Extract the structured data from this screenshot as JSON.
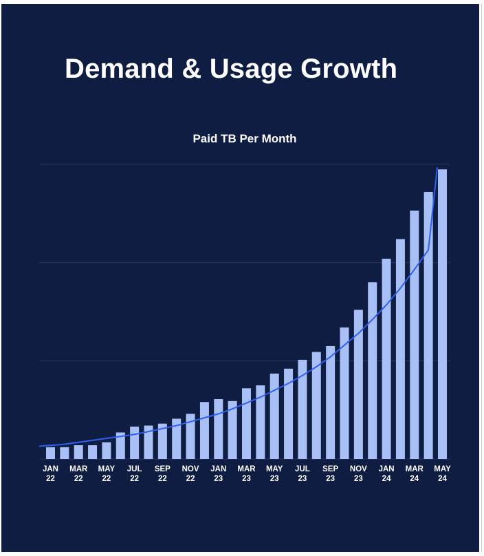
{
  "page": {
    "title": "Demand & Usage Growth"
  },
  "colors": {
    "background": "#0f1d43",
    "bar": "#a9c0f6",
    "trend": "#2f5ff0",
    "grid": "#27365e"
  },
  "chart_data": {
    "type": "bar",
    "title": "Paid TB Per Month",
    "xlabel": "",
    "ylabel": "",
    "ylim": [
      0,
      3
    ],
    "grid": true,
    "trendline": "exponential",
    "categories": [
      "Jan 22",
      "Feb 22",
      "Mar 22",
      "Apr 22",
      "May 22",
      "Jun 22",
      "Jul 22",
      "Aug 22",
      "Sep 22",
      "Oct 22",
      "Nov 22",
      "Dec 22",
      "Jan 23",
      "Feb 23",
      "Mar 23",
      "Apr 23",
      "May 23",
      "Jun 23",
      "Jul 23",
      "Aug 23",
      "Sep 23",
      "Oct 23",
      "Nov 23",
      "Dec 23",
      "Jan 24",
      "Feb 24",
      "Mar 24",
      "Apr 24",
      "May 24"
    ],
    "tick_labels": [
      {
        "month": "JAN",
        "year": "22"
      },
      {
        "month": "MAR",
        "year": "22"
      },
      {
        "month": "MAY",
        "year": "22"
      },
      {
        "month": "JUL",
        "year": "22"
      },
      {
        "month": "SEP",
        "year": "22"
      },
      {
        "month": "NOV",
        "year": "22"
      },
      {
        "month": "JAN",
        "year": "23"
      },
      {
        "month": "MAR",
        "year": "23"
      },
      {
        "month": "MAY",
        "year": "23"
      },
      {
        "month": "JUL",
        "year": "23"
      },
      {
        "month": "SEP",
        "year": "23"
      },
      {
        "month": "NOV",
        "year": "23"
      },
      {
        "month": "JAN",
        "year": "24"
      },
      {
        "month": "MAR",
        "year": "24"
      },
      {
        "month": "MAY",
        "year": "24"
      }
    ],
    "values": [
      0.12,
      0.12,
      0.14,
      0.14,
      0.17,
      0.27,
      0.33,
      0.34,
      0.36,
      0.41,
      0.46,
      0.58,
      0.61,
      0.59,
      0.72,
      0.75,
      0.87,
      0.92,
      1.01,
      1.09,
      1.15,
      1.34,
      1.52,
      1.8,
      2.04,
      2.24,
      2.53,
      2.72,
      2.95
    ],
    "trend_values": [
      0.13,
      0.15,
      0.17,
      0.19,
      0.21,
      0.23,
      0.25,
      0.28,
      0.31,
      0.34,
      0.38,
      0.42,
      0.46,
      0.51,
      0.57,
      0.63,
      0.7,
      0.77,
      0.85,
      0.94,
      1.04,
      1.16,
      1.28,
      1.42,
      1.57,
      1.74,
      1.93,
      2.13,
      2.97
    ]
  }
}
